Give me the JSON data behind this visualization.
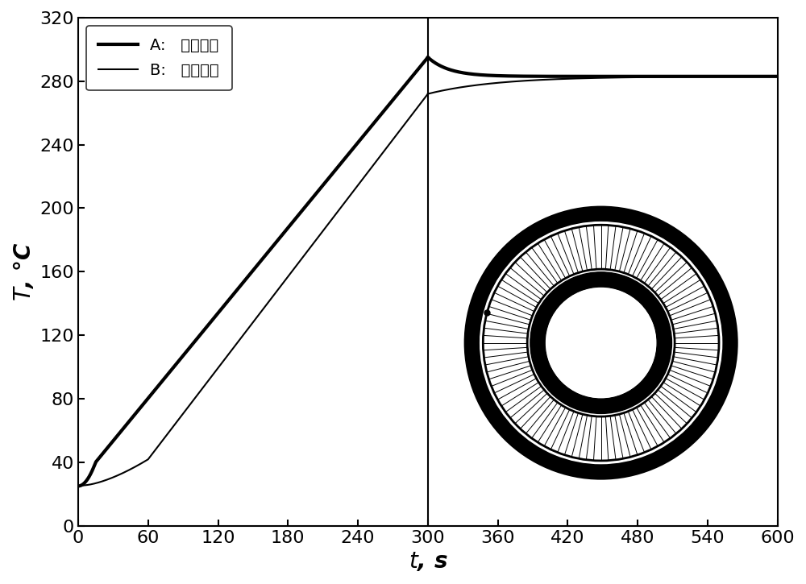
{
  "title": "",
  "xlabel": "t, s",
  "ylabel": "T, °C",
  "xlim": [
    0,
    600
  ],
  "ylim": [
    0,
    320
  ],
  "xticks": [
    0,
    60,
    120,
    180,
    240,
    300,
    360,
    420,
    480,
    540,
    600
  ],
  "yticks": [
    0,
    40,
    80,
    120,
    160,
    200,
    240,
    280,
    320
  ],
  "vline_x": 300,
  "legend_A": "A:   铁芯外侧",
  "legend_B": "B:   铁芯内侧",
  "line_color": "#000000",
  "background": "#ffffff",
  "lw_A": 3.0,
  "lw_B": 1.5,
  "A_start": 25,
  "A_peak": 295,
  "A_end": 283,
  "B_start": 25,
  "B_at300": 272,
  "B_end": 283
}
